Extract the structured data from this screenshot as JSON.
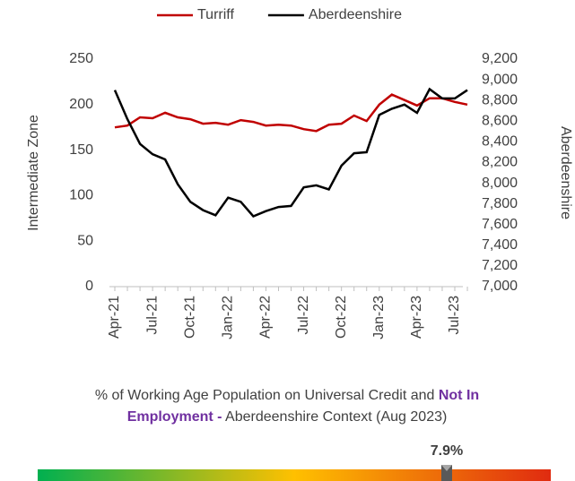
{
  "chart_data": {
    "type": "line",
    "categories": [
      "Apr-21",
      null,
      null,
      "Jul-21",
      null,
      null,
      "Oct-21",
      null,
      null,
      "Jan-22",
      null,
      null,
      "Apr-22",
      null,
      null,
      "Jul-22",
      null,
      null,
      "Oct-22",
      null,
      null,
      "Jan-23",
      null,
      null,
      "Apr-23",
      null,
      null,
      "Jul-23",
      null
    ],
    "series": [
      {
        "name": "Turriff",
        "color": "#c00000",
        "axis": "y",
        "values": [
          175,
          177,
          186,
          185,
          191,
          186,
          184,
          179,
          180,
          178,
          183,
          181,
          177,
          178,
          177,
          173,
          171,
          178,
          179,
          188,
          182,
          200,
          211,
          205,
          199,
          207,
          207,
          203,
          200
        ]
      },
      {
        "name": "Aberdeenshire",
        "color": "#000000",
        "axis": "y2",
        "values": [
          8900,
          8620,
          8380,
          8280,
          8230,
          7990,
          7820,
          7740,
          7690,
          7860,
          7820,
          7680,
          7730,
          7770,
          7780,
          7960,
          7980,
          7940,
          8170,
          8290,
          8300,
          8660,
          8720,
          8760,
          8680,
          8910,
          8820,
          8820,
          8900
        ]
      }
    ],
    "ylabel": "Intermediate Zone",
    "y2label": "Aberdeenshire",
    "ylim": [
      0,
      250
    ],
    "yticks": [
      0,
      50,
      100,
      150,
      200,
      250
    ],
    "y2lim": [
      7000,
      9200
    ],
    "y2ticks": [
      {
        "value": 7000,
        "label": "7,000"
      },
      {
        "value": 7200,
        "label": "7,200"
      },
      {
        "value": 7400,
        "label": "7,400"
      },
      {
        "value": 7600,
        "label": "7,600"
      },
      {
        "value": 7800,
        "label": "7,800"
      },
      {
        "value": 8000,
        "label": "8,000"
      },
      {
        "value": 8200,
        "label": "8,200"
      },
      {
        "value": 8400,
        "label": "8,400"
      },
      {
        "value": 8600,
        "label": "8,600"
      },
      {
        "value": 8800,
        "label": "8,800"
      },
      {
        "value": 9000,
        "label": "9,000"
      },
      {
        "value": 9200,
        "label": "9,200"
      }
    ],
    "legend": "top"
  },
  "caption": {
    "line1": [
      {
        "text": "% of Working Age Population on Universal Credit and ",
        "bold": false,
        "color": "#404040"
      },
      {
        "text": "Not In",
        "bold": true,
        "color": "#7030a0"
      }
    ],
    "line2": [
      {
        "text": "Employment -",
        "bold": true,
        "color": "#7030a0"
      },
      {
        "text": " Aberdeenshire Context (Aug 2023)",
        "bold": false,
        "color": "#404040"
      }
    ]
  },
  "gauge": {
    "value_label": "7.9%"
  }
}
